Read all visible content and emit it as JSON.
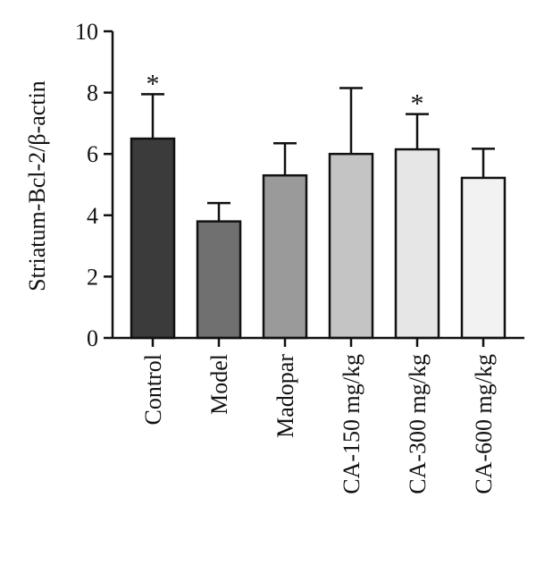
{
  "chart_data": {
    "type": "bar",
    "title": "",
    "xlabel": "",
    "ylabel": "Striatum-Bcl-2/β-actin",
    "ylim": [
      0,
      10
    ],
    "yticks": [
      0,
      2,
      4,
      6,
      8,
      10
    ],
    "categories": [
      "Control",
      "Model",
      "Madopar",
      "CA-150 mg/kg",
      "CA-300 mg/kg",
      "CA-600 mg/kg"
    ],
    "values": [
      6.5,
      3.8,
      5.3,
      6.0,
      6.15,
      5.22
    ],
    "errors": [
      1.45,
      0.6,
      1.05,
      2.15,
      1.15,
      0.95
    ],
    "significance": [
      "*",
      "",
      "",
      "",
      "*",
      ""
    ],
    "colors": [
      "#3b3b3b",
      "#707070",
      "#9a9a9a",
      "#c4c4c4",
      "#e6e6e6",
      "#f2f2f2"
    ],
    "grid": false,
    "legend": "none"
  }
}
